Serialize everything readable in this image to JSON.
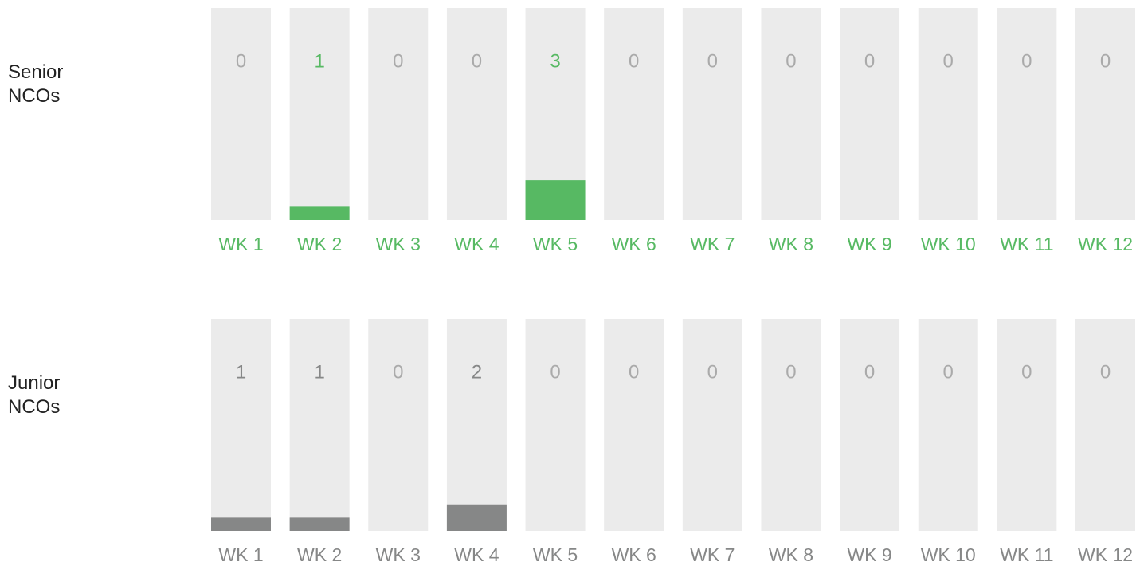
{
  "chart_data": [
    {
      "type": "bar",
      "title": "Senior NCOs",
      "categories": [
        "WK 1",
        "WK 2",
        "WK 3",
        "WK 4",
        "WK 5",
        "WK 6",
        "WK 7",
        "WK 8",
        "WK 9",
        "WK 10",
        "WK 11",
        "WK 12"
      ],
      "values": [
        0,
        1,
        0,
        0,
        3,
        0,
        0,
        0,
        0,
        0,
        0,
        0
      ],
      "color": "#57b963",
      "label_color": "#57b963",
      "ylim": [
        0,
        16
      ]
    },
    {
      "type": "bar",
      "title": "Junior NCOs",
      "categories": [
        "WK 1",
        "WK 2",
        "WK 3",
        "WK 4",
        "WK 5",
        "WK 6",
        "WK 7",
        "WK 8",
        "WK 9",
        "WK 10",
        "WK 11",
        "WK 12"
      ],
      "values": [
        1,
        1,
        0,
        2,
        0,
        0,
        0,
        0,
        0,
        0,
        0,
        0
      ],
      "color": "#868787",
      "label_color": "#868787",
      "ylim": [
        0,
        16
      ]
    }
  ]
}
